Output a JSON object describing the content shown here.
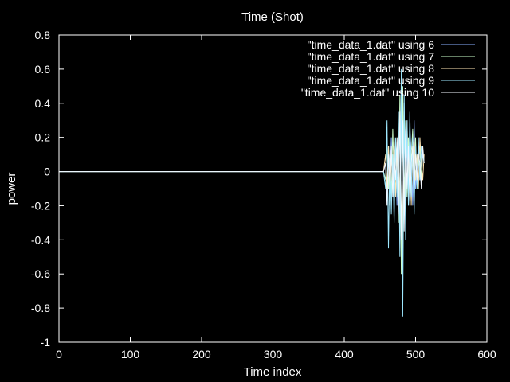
{
  "chart_data": {
    "type": "line",
    "title": "Time (Shot)",
    "xlabel": "Time index",
    "ylabel": "power",
    "xlim": [
      0,
      600
    ],
    "ylim": [
      -1,
      0.8
    ],
    "xticks": [
      0,
      100,
      200,
      300,
      400,
      500,
      600
    ],
    "yticks": [
      -1,
      -0.8,
      -0.6,
      -0.4,
      -0.2,
      0,
      0.2,
      0.4,
      0.6,
      0.8
    ],
    "grid": false,
    "legend_position": "top-right",
    "background": "#000000",
    "axis_color": "#ffffff",
    "series": [
      {
        "name": "\"time_data_1.dat\" using 6",
        "color": "#8ab0ff",
        "x": [
          0,
          455,
          458,
          460,
          462,
          464,
          466,
          468,
          470,
          472,
          474,
          476,
          478,
          480,
          482,
          484,
          486,
          488,
          490,
          492,
          494,
          496,
          498,
          500,
          502,
          504,
          506,
          508,
          510,
          512
        ],
        "y": [
          0,
          0,
          0.05,
          -0.15,
          0.1,
          -0.05,
          0.2,
          -0.1,
          0.05,
          0.15,
          -0.2,
          0.3,
          -0.35,
          0.55,
          -0.5,
          0.4,
          -0.3,
          0.2,
          -0.1,
          0.25,
          0.1,
          -0.2,
          0.3,
          -0.1,
          0.05,
          0.15,
          -0.05,
          0.1,
          0.12,
          0.05
        ]
      },
      {
        "name": "\"time_data_1.dat\" using 7",
        "color": "#ccffcc",
        "x": [
          0,
          455,
          458,
          460,
          462,
          464,
          466,
          468,
          470,
          472,
          474,
          476,
          478,
          480,
          482,
          484,
          486,
          488,
          490,
          492,
          494,
          496,
          498,
          500,
          502,
          504,
          506,
          508,
          510,
          512
        ],
        "y": [
          0,
          0,
          -0.05,
          0.2,
          -0.1,
          0.1,
          -0.15,
          0.25,
          -0.05,
          0.1,
          0.15,
          -0.3,
          0.45,
          -0.6,
          0.5,
          -0.2,
          0.3,
          -0.15,
          0.2,
          -0.05,
          0.1,
          0.25,
          -0.15,
          0.2,
          -0.1,
          0.05,
          0.15,
          -0.05,
          0.1,
          0.08
        ]
      },
      {
        "name": "\"time_data_1.dat\" using 8",
        "color": "#ffe6b3",
        "x": [
          0,
          455,
          458,
          460,
          462,
          464,
          466,
          468,
          470,
          472,
          474,
          476,
          478,
          480,
          482,
          484,
          486,
          488,
          490,
          492,
          494,
          496,
          498,
          500,
          502,
          504,
          506,
          508,
          510,
          512
        ],
        "y": [
          0,
          0,
          0.1,
          -0.1,
          0.15,
          -0.2,
          0.1,
          -0.05,
          0.2,
          -0.15,
          0.1,
          0.25,
          -0.2,
          0.4,
          -0.45,
          0.35,
          -0.25,
          0.3,
          -0.05,
          0.15,
          -0.2,
          0.1,
          0.2,
          -0.05,
          0.1,
          -0.1,
          0.2,
          0.05,
          -0.05,
          0.1
        ]
      },
      {
        "name": "\"time_data_1.dat\" using 9",
        "color": "#9ee8ff",
        "x": [
          0,
          455,
          458,
          460,
          462,
          464,
          466,
          468,
          470,
          472,
          474,
          476,
          478,
          480,
          482,
          484,
          486,
          488,
          490,
          492,
          494,
          496,
          498,
          500,
          502,
          504,
          506,
          508,
          510,
          512
        ],
        "y": [
          0,
          0,
          -0.1,
          0.3,
          -0.45,
          0.15,
          -0.25,
          0.1,
          -0.3,
          0.2,
          -0.15,
          0.35,
          -0.5,
          0.6,
          -0.85,
          0.45,
          -0.4,
          0.3,
          -0.2,
          0.35,
          -0.15,
          0.2,
          -0.25,
          0.15,
          -0.1,
          0.2,
          -0.05,
          0.15,
          0.1,
          0.05
        ]
      },
      {
        "name": "\"time_data_1.dat\" using 10",
        "color": "#f4f8ff",
        "x": [
          0,
          455,
          458,
          460,
          462,
          464,
          466,
          468,
          470,
          472,
          474,
          476,
          478,
          480,
          482,
          484,
          486,
          488,
          490,
          492,
          494,
          496,
          498,
          500,
          502,
          504,
          506,
          508,
          510,
          512
        ],
        "y": [
          0,
          0,
          0.05,
          -0.2,
          0.1,
          -0.1,
          0.15,
          -0.15,
          0.1,
          -0.05,
          0.2,
          -0.25,
          0.35,
          -0.4,
          0.3,
          -0.35,
          0.25,
          -0.1,
          0.15,
          -0.2,
          0.05,
          0.15,
          -0.1,
          0.1,
          -0.05,
          0.1,
          0.05,
          -0.1,
          0.15,
          0.05
        ]
      }
    ]
  }
}
